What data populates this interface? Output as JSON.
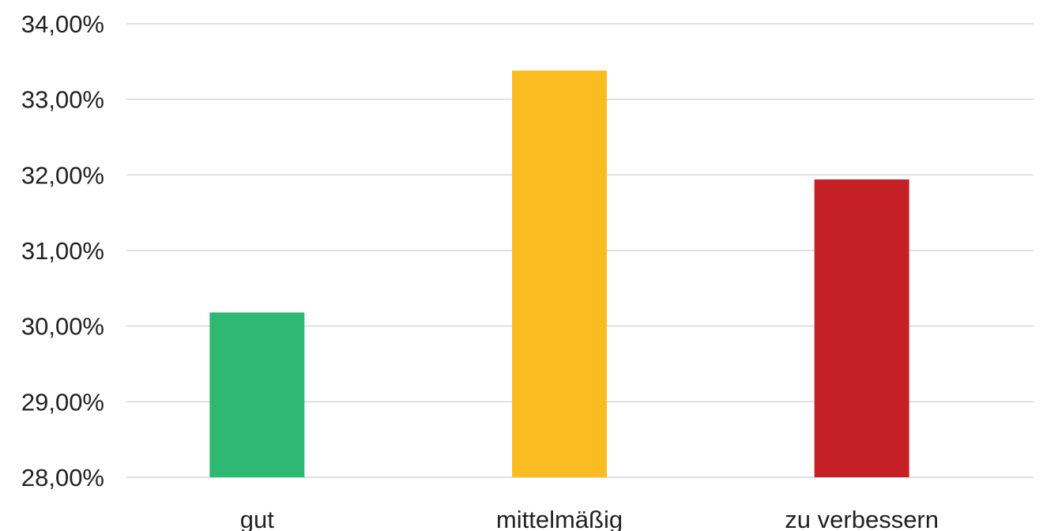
{
  "chart_data": {
    "type": "bar",
    "categories": [
      "gut",
      "mittelmäßig",
      "zu verbessern"
    ],
    "values": [
      30.18,
      33.38,
      31.94
    ],
    "bar_colors": [
      "#2eb872",
      "#fbbc21",
      "#c42026"
    ],
    "ylim": [
      28,
      34
    ],
    "y_ticks": [
      28,
      29,
      30,
      31,
      32,
      33,
      34
    ],
    "y_tick_labels": [
      "28,00%",
      "29,00%",
      "30,00%",
      "31,00%",
      "32,00%",
      "33,00%",
      "34,00%"
    ],
    "grid": true,
    "gridline_color": "#d6d6d6",
    "title": "",
    "xlabel": "",
    "ylabel": ""
  }
}
